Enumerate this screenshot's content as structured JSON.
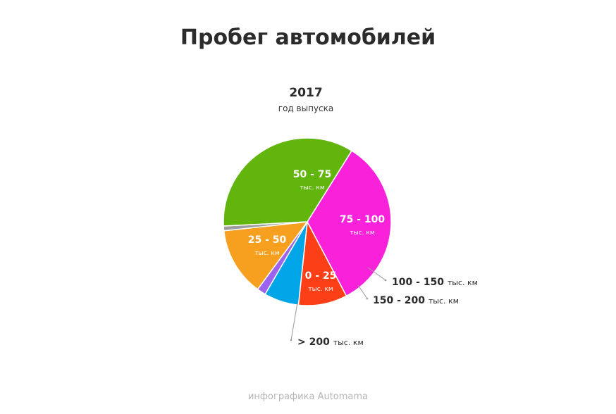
{
  "title": "Пробег автомобилей",
  "credit": "инфографика Automama",
  "chart_data": {
    "type": "pie",
    "title": "2017",
    "subtitle": "год выпуска",
    "unit": "тыс. км",
    "start_angle_deg": -58,
    "slices": [
      {
        "label": "50 - 75",
        "value": 33.4,
        "color": "#fa21db",
        "label_inside": true
      },
      {
        "label": "75 - 100",
        "value": 9.4,
        "color": "#fd3f17",
        "label_inside": true
      },
      {
        "label": "100 - 150",
        "value": 6.7,
        "color": "#00a5e8",
        "label_inside": false
      },
      {
        "label": "150 - 200",
        "value": 1.7,
        "color": "#9c63ee",
        "label_inside": false
      },
      {
        "label": "0 - 25",
        "value": 13.2,
        "color": "#f7a01f",
        "label_inside": true
      },
      {
        "label": "> 200",
        "value": 0.9,
        "color": "#9c9c9c",
        "label_inside": false
      },
      {
        "label": "25 - 50",
        "value": 34.7,
        "color": "#62b50d",
        "label_inside": true
      }
    ]
  }
}
